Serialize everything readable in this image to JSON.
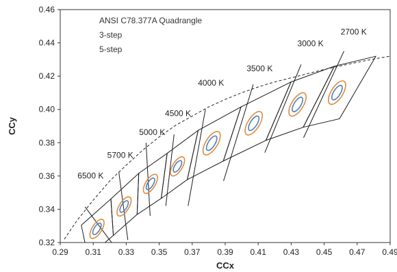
{
  "chart_data": {
    "type": "scatter",
    "title": "",
    "xlabel": "CCx",
    "ylabel": "CCy",
    "xlim": [
      0.29,
      0.49
    ],
    "ylim": [
      0.32,
      0.46
    ],
    "x_ticks": [
      0.29,
      0.31,
      0.33,
      0.35,
      0.37,
      0.39,
      0.41,
      0.43,
      0.45,
      0.47,
      0.49
    ],
    "y_ticks": [
      0.32,
      0.34,
      0.36,
      0.38,
      0.4,
      0.42,
      0.44,
      0.46
    ],
    "x_tick_labels": [
      "0.29",
      "0.31",
      "0.33",
      "0.35",
      "0.37",
      "0.39",
      "0.41",
      "0.43",
      "0.45",
      "0.47",
      "0.49"
    ],
    "y_tick_labels": [
      "0.32",
      "0.34",
      "0.36",
      "0.38",
      "0.40",
      "0.42",
      "0.44",
      "0.46"
    ],
    "grid": false,
    "legend": {
      "placement": "top-left",
      "entries": [
        {
          "label": "ANSI C78.377A Quadrangle",
          "color": "#000000"
        },
        {
          "label": "3-step",
          "color": "#4a7fc1"
        },
        {
          "label": "5-step",
          "color": "#e08a3c"
        }
      ]
    },
    "colors": {
      "quadrangle": "#1a1a1a",
      "step3": "#4a7fc1",
      "step5": "#e08a3c",
      "planckian": "#222222",
      "isotemp": "#1a1a1a"
    },
    "planckian_locus": [
      [
        0.2925,
        0.322
      ],
      [
        0.3,
        0.333
      ],
      [
        0.31,
        0.3455
      ],
      [
        0.32,
        0.357
      ],
      [
        0.33,
        0.3665
      ],
      [
        0.34,
        0.3755
      ],
      [
        0.35,
        0.3835
      ],
      [
        0.36,
        0.3905
      ],
      [
        0.37,
        0.396
      ],
      [
        0.38,
        0.4015
      ],
      [
        0.39,
        0.406
      ],
      [
        0.4,
        0.41
      ],
      [
        0.41,
        0.4135
      ],
      [
        0.42,
        0.4165
      ],
      [
        0.43,
        0.419
      ],
      [
        0.44,
        0.4215
      ],
      [
        0.45,
        0.424
      ],
      [
        0.46,
        0.4262
      ],
      [
        0.47,
        0.4283
      ],
      [
        0.48,
        0.4303
      ],
      [
        0.49,
        0.432
      ]
    ],
    "cct_points": [
      {
        "label": "6500 K",
        "center": [
          0.3123,
          0.3282
        ],
        "ellipse": {
          "a3": 0.004,
          "b3": 0.0017,
          "a5": 0.0066,
          "b5": 0.0029,
          "angle": 58
        },
        "quad_left": [
          [
            0.3028,
            0.3304
          ],
          [
            0.3068,
            0.3113
          ]
        ],
        "iso_line": [
          [
            0.305,
            0.3415
          ],
          [
            0.3215,
            0.3195
          ]
        ],
        "label_pos": [
          0.3005,
          0.3586
        ]
      },
      {
        "label": "5700 K",
        "center": [
          0.3287,
          0.3417
        ],
        "ellipse": {
          "a3": 0.004,
          "b3": 0.0017,
          "a5": 0.0066,
          "b5": 0.0029,
          "angle": 58
        },
        "quad_left": [
          [
            0.3207,
            0.3462
          ],
          [
            0.3222,
            0.3243
          ]
        ],
        "iso_line": [
          [
            0.3255,
            0.3625
          ],
          [
            0.331,
            0.3215
          ]
        ],
        "label_pos": [
          0.3185,
          0.3709
        ]
      },
      {
        "label": "5000 K",
        "center": [
          0.3447,
          0.3553
        ],
        "ellipse": {
          "a3": 0.004,
          "b3": 0.0017,
          "a5": 0.0066,
          "b5": 0.0029,
          "angle": 58
        },
        "quad_left": [
          [
            0.3376,
            0.3616
          ],
          [
            0.3366,
            0.3369
          ]
        ],
        "iso_line": [
          [
            0.342,
            0.38
          ],
          [
            0.3445,
            0.336
          ]
        ],
        "label_pos": [
          0.3378,
          0.3846
        ]
      },
      {
        "label": "4500 K",
        "center": [
          0.3611,
          0.3658
        ],
        "ellipse": {
          "a3": 0.004,
          "b3": 0.0017,
          "a5": 0.0066,
          "b5": 0.0029,
          "angle": 58
        },
        "quad_left": [
          [
            0.3548,
            0.3736
          ],
          [
            0.3512,
            0.3465
          ]
        ],
        "iso_line": [
          [
            0.359,
            0.385
          ],
          [
            0.354,
            0.342
          ]
        ],
        "label_pos": [
          0.3535,
          0.396
        ]
      },
      {
        "label": "4000 K",
        "center": [
          0.3818,
          0.3797
        ],
        "ellipse": {
          "a3": 0.005,
          "b3": 0.002,
          "a5": 0.0081,
          "b5": 0.0035,
          "angle": 58
        },
        "quad_left": [
          [
            0.3736,
            0.3874
          ],
          [
            0.367,
            0.3578
          ]
        ],
        "iso_line": [
          [
            0.378,
            0.4
          ],
          [
            0.3675,
            0.342
          ]
        ],
        "label_pos": [
          0.3735,
          0.4142
        ]
      },
      {
        "label": "3500 K",
        "center": [
          0.4073,
          0.3917
        ],
        "ellipse": {
          "a3": 0.005,
          "b3": 0.002,
          "a5": 0.0081,
          "b5": 0.0035,
          "angle": 58
        },
        "quad_left": [
          [
            0.3996,
            0.4015
          ],
          [
            0.3889,
            0.369
          ]
        ],
        "iso_line": [
          [
            0.407,
            0.415
          ],
          [
            0.389,
            0.357
          ]
        ],
        "label_pos": [
          0.403,
          0.423
        ]
      },
      {
        "label": "3000 K",
        "center": [
          0.4338,
          0.403
        ],
        "ellipse": {
          "a3": 0.005,
          "b3": 0.002,
          "a5": 0.0081,
          "b5": 0.0035,
          "angle": 58
        },
        "quad_left": [
          [
            0.4299,
            0.4165
          ],
          [
            0.4147,
            0.3814
          ]
        ],
        "iso_line": [
          [
            0.436,
            0.427
          ],
          [
            0.414,
            0.374
          ]
        ],
        "label_pos": [
          0.4338,
          0.438
        ]
      },
      {
        "label": "2700 K",
        "center": [
          0.4578,
          0.4101
        ],
        "ellipse": {
          "a3": 0.005,
          "b3": 0.002,
          "a5": 0.0081,
          "b5": 0.0035,
          "angle": 58
        },
        "quad_left": [
          [
            0.4562,
            0.426
          ],
          [
            0.4373,
            0.3893
          ]
        ],
        "iso_line": [
          [
            0.462,
            0.435
          ],
          [
            0.4375,
            0.383
          ]
        ],
        "label_pos": [
          0.46,
          0.445
        ]
      }
    ],
    "quad_right_edge": [
      [
        0.4813,
        0.4319
      ],
      [
        0.4593,
        0.3944
      ]
    ]
  }
}
